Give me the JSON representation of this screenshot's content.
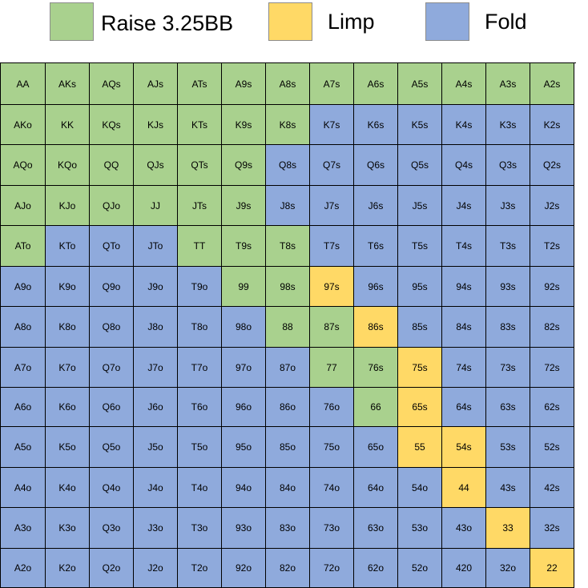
{
  "legend": [
    {
      "key": "raise",
      "label": "Raise 3.25BB",
      "color": "#a9d18e"
    },
    {
      "key": "limp",
      "label": "Limp",
      "color": "#ffd966"
    },
    {
      "key": "fold",
      "label": "Fold",
      "color": "#8faadc"
    }
  ],
  "chart_data": {
    "type": "table",
    "columns": 13,
    "legend_placement": "top",
    "cells": [
      [
        "AA",
        "raise"
      ],
      [
        "AKs",
        "raise"
      ],
      [
        "AQs",
        "raise"
      ],
      [
        "AJs",
        "raise"
      ],
      [
        "ATs",
        "raise"
      ],
      [
        "A9s",
        "raise"
      ],
      [
        "A8s",
        "raise"
      ],
      [
        "A7s",
        "raise"
      ],
      [
        "A6s",
        "raise"
      ],
      [
        "A5s",
        "raise"
      ],
      [
        "A4s",
        "raise"
      ],
      [
        "A3s",
        "raise"
      ],
      [
        "A2s",
        "raise"
      ],
      [
        "AKo",
        "raise"
      ],
      [
        "KK",
        "raise"
      ],
      [
        "KQs",
        "raise"
      ],
      [
        "KJs",
        "raise"
      ],
      [
        "KTs",
        "raise"
      ],
      [
        "K9s",
        "raise"
      ],
      [
        "K8s",
        "raise"
      ],
      [
        "K7s",
        "fold"
      ],
      [
        "K6s",
        "fold"
      ],
      [
        "K5s",
        "fold"
      ],
      [
        "K4s",
        "fold"
      ],
      [
        "K3s",
        "fold"
      ],
      [
        "K2s",
        "fold"
      ],
      [
        "AQo",
        "raise"
      ],
      [
        "KQo",
        "raise"
      ],
      [
        "QQ",
        "raise"
      ],
      [
        "QJs",
        "raise"
      ],
      [
        "QTs",
        "raise"
      ],
      [
        "Q9s",
        "raise"
      ],
      [
        "Q8s",
        "fold"
      ],
      [
        "Q7s",
        "fold"
      ],
      [
        "Q6s",
        "fold"
      ],
      [
        "Q5s",
        "fold"
      ],
      [
        "Q4s",
        "fold"
      ],
      [
        "Q3s",
        "fold"
      ],
      [
        "Q2s",
        "fold"
      ],
      [
        "AJo",
        "raise"
      ],
      [
        "KJo",
        "raise"
      ],
      [
        "QJo",
        "raise"
      ],
      [
        "JJ",
        "raise"
      ],
      [
        "JTs",
        "raise"
      ],
      [
        "J9s",
        "raise"
      ],
      [
        "J8s",
        "fold"
      ],
      [
        "J7s",
        "fold"
      ],
      [
        "J6s",
        "fold"
      ],
      [
        "J5s",
        "fold"
      ],
      [
        "J4s",
        "fold"
      ],
      [
        "J3s",
        "fold"
      ],
      [
        "J2s",
        "fold"
      ],
      [
        "ATo",
        "raise"
      ],
      [
        "KTo",
        "fold"
      ],
      [
        "QTo",
        "fold"
      ],
      [
        "JTo",
        "fold"
      ],
      [
        "TT",
        "raise"
      ],
      [
        "T9s",
        "raise"
      ],
      [
        "T8s",
        "raise"
      ],
      [
        "T7s",
        "fold"
      ],
      [
        "T6s",
        "fold"
      ],
      [
        "T5s",
        "fold"
      ],
      [
        "T4s",
        "fold"
      ],
      [
        "T3s",
        "fold"
      ],
      [
        "T2s",
        "fold"
      ],
      [
        "A9o",
        "fold"
      ],
      [
        "K9o",
        "fold"
      ],
      [
        "Q9o",
        "fold"
      ],
      [
        "J9o",
        "fold"
      ],
      [
        "T9o",
        "fold"
      ],
      [
        "99",
        "raise"
      ],
      [
        "98s",
        "raise"
      ],
      [
        "97s",
        "limp"
      ],
      [
        "96s",
        "fold"
      ],
      [
        "95s",
        "fold"
      ],
      [
        "94s",
        "fold"
      ],
      [
        "93s",
        "fold"
      ],
      [
        "92s",
        "fold"
      ],
      [
        "A8o",
        "fold"
      ],
      [
        "K8o",
        "fold"
      ],
      [
        "Q8o",
        "fold"
      ],
      [
        "J8o",
        "fold"
      ],
      [
        "T8o",
        "fold"
      ],
      [
        "98o",
        "fold"
      ],
      [
        "88",
        "raise"
      ],
      [
        "87s",
        "raise"
      ],
      [
        "86s",
        "limp"
      ],
      [
        "85s",
        "fold"
      ],
      [
        "84s",
        "fold"
      ],
      [
        "83s",
        "fold"
      ],
      [
        "82s",
        "fold"
      ],
      [
        "A7o",
        "fold"
      ],
      [
        "K7o",
        "fold"
      ],
      [
        "Q7o",
        "fold"
      ],
      [
        "J7o",
        "fold"
      ],
      [
        "T7o",
        "fold"
      ],
      [
        "97o",
        "fold"
      ],
      [
        "87o",
        "fold"
      ],
      [
        "77",
        "raise"
      ],
      [
        "76s",
        "raise"
      ],
      [
        "75s",
        "limp"
      ],
      [
        "74s",
        "fold"
      ],
      [
        "73s",
        "fold"
      ],
      [
        "72s",
        "fold"
      ],
      [
        "A6o",
        "fold"
      ],
      [
        "K6o",
        "fold"
      ],
      [
        "Q6o",
        "fold"
      ],
      [
        "J6o",
        "fold"
      ],
      [
        "T6o",
        "fold"
      ],
      [
        "96o",
        "fold"
      ],
      [
        "86o",
        "fold"
      ],
      [
        "76o",
        "fold"
      ],
      [
        "66",
        "raise"
      ],
      [
        "65s",
        "limp"
      ],
      [
        "64s",
        "fold"
      ],
      [
        "63s",
        "fold"
      ],
      [
        "62s",
        "fold"
      ],
      [
        "A5o",
        "fold"
      ],
      [
        "K5o",
        "fold"
      ],
      [
        "Q5o",
        "fold"
      ],
      [
        "J5o",
        "fold"
      ],
      [
        "T5o",
        "fold"
      ],
      [
        "95o",
        "fold"
      ],
      [
        "85o",
        "fold"
      ],
      [
        "75o",
        "fold"
      ],
      [
        "65o",
        "fold"
      ],
      [
        "55",
        "limp"
      ],
      [
        "54s",
        "limp"
      ],
      [
        "53s",
        "fold"
      ],
      [
        "52s",
        "fold"
      ],
      [
        "A4o",
        "fold"
      ],
      [
        "K4o",
        "fold"
      ],
      [
        "Q4o",
        "fold"
      ],
      [
        "J4o",
        "fold"
      ],
      [
        "T4o",
        "fold"
      ],
      [
        "94o",
        "fold"
      ],
      [
        "84o",
        "fold"
      ],
      [
        "74o",
        "fold"
      ],
      [
        "64o",
        "fold"
      ],
      [
        "54o",
        "fold"
      ],
      [
        "44",
        "limp"
      ],
      [
        "43s",
        "fold"
      ],
      [
        "42s",
        "fold"
      ],
      [
        "A3o",
        "fold"
      ],
      [
        "K3o",
        "fold"
      ],
      [
        "Q3o",
        "fold"
      ],
      [
        "J3o",
        "fold"
      ],
      [
        "T3o",
        "fold"
      ],
      [
        "93o",
        "fold"
      ],
      [
        "83o",
        "fold"
      ],
      [
        "73o",
        "fold"
      ],
      [
        "63o",
        "fold"
      ],
      [
        "53o",
        "fold"
      ],
      [
        "43o",
        "fold"
      ],
      [
        "33",
        "limp"
      ],
      [
        "32s",
        "fold"
      ],
      [
        "A2o",
        "fold"
      ],
      [
        "K2o",
        "fold"
      ],
      [
        "Q2o",
        "fold"
      ],
      [
        "J2o",
        "fold"
      ],
      [
        "T2o",
        "fold"
      ],
      [
        "92o",
        "fold"
      ],
      [
        "82o",
        "fold"
      ],
      [
        "72o",
        "fold"
      ],
      [
        "62o",
        "fold"
      ],
      [
        "52o",
        "fold"
      ],
      [
        "420",
        "fold"
      ],
      [
        "32o",
        "fold"
      ],
      [
        "22",
        "limp"
      ]
    ]
  }
}
